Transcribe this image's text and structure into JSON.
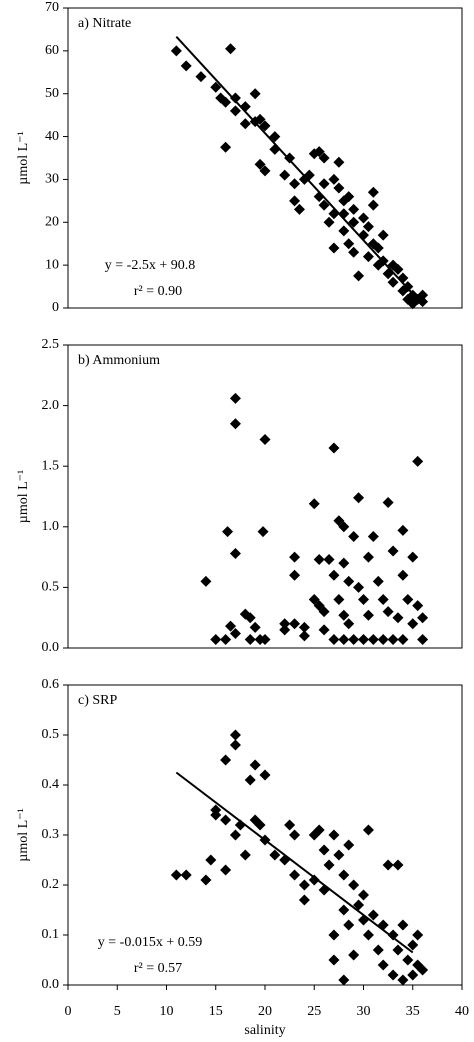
{
  "chart_data": [
    {
      "type": "scatter",
      "title": "a) Nitrate",
      "ylabel": "µmol L⁻¹",
      "color": "#000000",
      "xlim": [
        0,
        40
      ],
      "ylim": [
        0,
        70
      ],
      "yticks": [
        0,
        10,
        20,
        30,
        40,
        50,
        60,
        70
      ],
      "x": [
        11,
        12,
        13.5,
        15,
        15.5,
        16,
        16.5,
        17,
        17,
        16,
        18,
        18,
        19,
        19,
        19.5,
        19.5,
        20,
        20,
        21,
        21,
        22,
        22.5,
        23,
        23,
        23.5,
        24,
        24.5,
        25,
        25.5,
        26,
        25.5,
        26,
        26,
        26.5,
        27,
        27,
        27.5,
        27.5,
        28,
        28,
        28,
        28.5,
        28.5,
        29,
        29,
        29,
        29.5,
        30,
        30,
        30.5,
        30.5,
        31,
        31,
        31.5,
        31.5,
        32,
        32,
        32.5,
        33,
        33,
        33.5,
        34,
        34,
        34.5,
        34.5,
        35,
        35,
        35.5,
        36,
        36,
        27,
        31
      ],
      "values": [
        60,
        56.5,
        54,
        51.5,
        49,
        48,
        60.5,
        49,
        46,
        37.5,
        47,
        43,
        43.5,
        50,
        44,
        33.5,
        32,
        42.5,
        40,
        37,
        31,
        35,
        29,
        25,
        23,
        30,
        31,
        36,
        36.5,
        35,
        26,
        24,
        29,
        20,
        22,
        30,
        34,
        28,
        25,
        22,
        18,
        26,
        15,
        20,
        23,
        13,
        7.5,
        17,
        21,
        12,
        19,
        15,
        24,
        10,
        14,
        11,
        17,
        8,
        6,
        10,
        9,
        4,
        7,
        2,
        5,
        3,
        1,
        2,
        1.5,
        3,
        14,
        27
      ],
      "trendline": {
        "x": [
          11,
          36
        ],
        "values": [
          63.3,
          0.8
        ]
      },
      "equation": [
        "y = -2.5x + 90.8",
        "r² = 0.90"
      ]
    },
    {
      "type": "scatter",
      "title": "b) Ammonium",
      "ylabel": "µmol L⁻¹",
      "color": "#000000",
      "xlim": [
        0,
        40
      ],
      "ylim": [
        0,
        2.5
      ],
      "yticks": [
        {
          "value": 0,
          "label": "0.0"
        },
        0.5,
        {
          "value": 1,
          "label": "1.0"
        },
        1.5,
        {
          "value": 2,
          "label": "2.0"
        },
        2.5
      ],
      "x": [
        14,
        15,
        16,
        16.2,
        16.5,
        17,
        17,
        17,
        17,
        18,
        18.5,
        18.5,
        19,
        19.5,
        19.8,
        20,
        20,
        22,
        22,
        23,
        23,
        23,
        24,
        24,
        25,
        25,
        25.5,
        25.5,
        26,
        26,
        26.5,
        27,
        27,
        27,
        27.5,
        27.5,
        28,
        28,
        28,
        28,
        28.5,
        28.5,
        29,
        29,
        29.5,
        29.5,
        30,
        30,
        30.5,
        30.5,
        31,
        31,
        31.5,
        32,
        32,
        32.5,
        32.5,
        33,
        33,
        33.5,
        34,
        34,
        34,
        34.5,
        35,
        35,
        35.5,
        35.5,
        36,
        36
      ],
      "values": [
        0.55,
        0.07,
        0.07,
        0.96,
        0.18,
        2.06,
        1.85,
        0.78,
        0.12,
        0.28,
        0.07,
        0.25,
        0.17,
        0.07,
        0.96,
        1.72,
        0.07,
        0.2,
        0.15,
        0.75,
        0.6,
        0.2,
        0.17,
        0.1,
        0.4,
        1.19,
        0.73,
        0.35,
        0.15,
        0.3,
        0.73,
        1.65,
        0.6,
        0.07,
        0.4,
        1.05,
        1.0,
        0.7,
        0.27,
        0.07,
        0.55,
        0.2,
        0.92,
        0.07,
        1.24,
        0.5,
        0.4,
        0.07,
        0.75,
        0.27,
        0.92,
        0.07,
        0.55,
        0.4,
        0.07,
        1.2,
        0.3,
        0.8,
        0.07,
        0.25,
        0.97,
        0.6,
        0.07,
        0.4,
        0.75,
        0.2,
        1.54,
        0.35,
        0.07,
        0.25
      ]
    },
    {
      "type": "scatter",
      "title": "c) SRP",
      "ylabel": "µmol L⁻¹",
      "xlabel": "salinity",
      "color": "#000000",
      "xlim": [
        0,
        40
      ],
      "xticks": [
        0,
        5,
        10,
        15,
        20,
        25,
        30,
        35,
        40
      ],
      "ylim": [
        0,
        0.6
      ],
      "yticks": [
        {
          "value": 0,
          "label": "0.0"
        },
        0.1,
        0.2,
        0.3,
        0.4,
        0.5,
        0.6
      ],
      "x": [
        11,
        12,
        14,
        14.5,
        15,
        15,
        16,
        16,
        16,
        17,
        17,
        17,
        17.5,
        18,
        18.5,
        19,
        19,
        19.5,
        20,
        20,
        21,
        22,
        22.5,
        23,
        23,
        24,
        24,
        25,
        25,
        25.5,
        26,
        26,
        26.5,
        27,
        27,
        27,
        27.5,
        28,
        28,
        28,
        28.5,
        28.5,
        29,
        29,
        29.5,
        30,
        30,
        30.5,
        30.5,
        31,
        31.5,
        32,
        32,
        32.5,
        33,
        33,
        33.5,
        33.5,
        34,
        34,
        34.5,
        35,
        35,
        35.5,
        35.5,
        36
      ],
      "values": [
        0.22,
        0.22,
        0.21,
        0.25,
        0.34,
        0.35,
        0.45,
        0.33,
        0.23,
        0.5,
        0.48,
        0.3,
        0.32,
        0.26,
        0.41,
        0.44,
        0.33,
        0.32,
        0.42,
        0.29,
        0.26,
        0.25,
        0.32,
        0.3,
        0.22,
        0.2,
        0.17,
        0.3,
        0.21,
        0.31,
        0.27,
        0.19,
        0.24,
        0.3,
        0.1,
        0.05,
        0.26,
        0.22,
        0.15,
        0.01,
        0.28,
        0.12,
        0.2,
        0.06,
        0.16,
        0.13,
        0.18,
        0.31,
        0.1,
        0.14,
        0.07,
        0.12,
        0.04,
        0.24,
        0.1,
        0.02,
        0.24,
        0.07,
        0.12,
        0.01,
        0.05,
        0.08,
        0.02,
        0.1,
        0.04,
        0.03
      ],
      "trendline": {
        "x": [
          11,
          35
        ],
        "values": [
          0.425,
          0.065
        ]
      },
      "equation": [
        "y = -0.015x + 0.59",
        "r² = 0.57"
      ]
    }
  ]
}
